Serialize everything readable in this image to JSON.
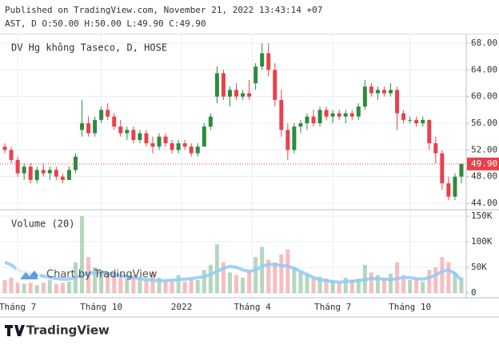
{
  "chart_data": {
    "type": "candlestick",
    "title": "Published on TradingView.com, November 21, 2022 13:43:14 +07",
    "subtitle": "AST, D O:50.00 H:50.00 L:49.90 C:49.90",
    "legend": "DV Hg không Taseco, D, HOSE",
    "watermark": "Chart by TradingView",
    "brand": "TradingView",
    "grid": true,
    "up_color": "#2e8b3e",
    "down_color": "#e8414b",
    "xlim": [
      -0.75,
      71.75
    ],
    "xticks": [
      {
        "value": 2,
        "label": "Tháng 7"
      },
      {
        "value": 15,
        "label": "Tháng 10"
      },
      {
        "value": 27.5,
        "label": "2022"
      },
      {
        "value": 38.5,
        "label": "Tháng 4"
      },
      {
        "value": 51,
        "label": "Tháng 7"
      },
      {
        "value": 63,
        "label": "Tháng 10"
      }
    ],
    "ylim": [
      43.04,
      69.44
    ],
    "yticks": [
      {
        "value": 44,
        "label": "44.00"
      },
      {
        "value": 48,
        "label": "48.00"
      },
      {
        "value": 52,
        "label": "52.00"
      },
      {
        "value": 56,
        "label": "56.00"
      },
      {
        "value": 60,
        "label": "60.00"
      },
      {
        "value": 64,
        "label": "64.00"
      },
      {
        "value": 68,
        "label": "68.00"
      }
    ],
    "last_price": {
      "value": 49.9,
      "label": "49.90"
    },
    "open": [
      52.5,
      52,
      50.5,
      48.5,
      49.5,
      47.5,
      49,
      48.5,
      49,
      48,
      47.5,
      49,
      55,
      56,
      54.5,
      56.5,
      58,
      57,
      55.5,
      54.5,
      55,
      53.5,
      54.5,
      53,
      52.5,
      54,
      53,
      52,
      53,
      52.5,
      51.5,
      52.5,
      55.5,
      60,
      63.5,
      60,
      61,
      60,
      60.5,
      62,
      64.5,
      66.5,
      64,
      59.5,
      55,
      52,
      55.5,
      56,
      57,
      56,
      58,
      57,
      57.5,
      57,
      57.5,
      57,
      58.5,
      61.5,
      60.5,
      61,
      60.5,
      61,
      57.5,
      56.5,
      56.5,
      56,
      56.5,
      53,
      51.5,
      47,
      45,
      48
    ],
    "high": [
      53,
      52.5,
      51,
      50,
      50,
      49.5,
      50,
      49.5,
      49.5,
      48.5,
      49.5,
      51.5,
      59.5,
      57,
      57,
      58.5,
      59,
      57.5,
      56.5,
      55.5,
      55.5,
      55,
      55,
      54,
      54.5,
      54.5,
      53.5,
      53.5,
      53.5,
      53,
      53,
      56,
      57.5,
      64.5,
      64,
      61.5,
      62,
      61,
      62.5,
      65,
      68,
      68,
      65,
      61,
      56,
      56,
      56.5,
      57.5,
      58,
      58.5,
      58.5,
      58,
      58,
      58,
      58,
      59,
      62.5,
      62,
      61.5,
      61.5,
      62,
      61.5,
      58,
      57,
      57,
      57,
      56.5,
      54,
      52,
      48,
      48.5,
      50
    ],
    "low": [
      51.5,
      50,
      48,
      47.5,
      47,
      47,
      48,
      47.5,
      47.5,
      47,
      47.5,
      48.5,
      54,
      54,
      54,
      56,
      56.5,
      55,
      54,
      53.5,
      53,
      53,
      52.5,
      51.5,
      52,
      52.5,
      51.5,
      51.5,
      52,
      51,
      51,
      52.5,
      55,
      59,
      59.5,
      58.5,
      59.5,
      59.5,
      59.5,
      61,
      64,
      63,
      58.5,
      54,
      50.5,
      51.5,
      54.5,
      55,
      55.5,
      55.5,
      56.5,
      56,
      56.5,
      56,
      56.5,
      56.5,
      58,
      60,
      59.5,
      60,
      60,
      55,
      56,
      56,
      55.5,
      55.5,
      52,
      50,
      46,
      44.5,
      44.5,
      47
    ],
    "close": [
      52,
      50.5,
      48.5,
      49.5,
      47.5,
      49,
      48.5,
      49,
      48,
      47.5,
      49,
      51,
      56,
      54.5,
      56.5,
      58,
      57,
      55.5,
      54.5,
      55,
      53.5,
      54.5,
      53,
      52.5,
      54,
      53,
      52,
      53,
      52.5,
      51.5,
      52.5,
      55.5,
      57,
      63.5,
      60,
      61,
      60,
      60.5,
      60,
      64.5,
      66.5,
      64,
      59.5,
      55,
      52,
      55.5,
      56,
      57,
      56,
      58,
      57,
      57.5,
      57,
      57.5,
      57,
      58.5,
      61.5,
      60.5,
      61,
      60.5,
      61,
      57.5,
      56.5,
      56.5,
      56,
      56.5,
      53,
      51.5,
      47,
      45,
      48,
      49.9
    ],
    "volume": {
      "title": "Volume (20)",
      "ylim": [
        -9375,
        162500
      ],
      "yticks": [
        {
          "value": 0,
          "label": "0"
        },
        {
          "value": 50000,
          "label": "50K"
        },
        {
          "value": 100000,
          "label": "100K"
        },
        {
          "value": 150000,
          "label": "150K"
        }
      ],
      "ma_color": "#90caf9",
      "values": [
        25000,
        30000,
        20000,
        18000,
        22000,
        15000,
        20000,
        25000,
        18000,
        20000,
        22000,
        60000,
        150000,
        70000,
        50000,
        45000,
        35000,
        40000,
        30000,
        28000,
        35000,
        30000,
        25000,
        40000,
        30000,
        25000,
        28000,
        35000,
        22000,
        30000,
        25000,
        45000,
        55000,
        95000,
        60000,
        40000,
        35000,
        30000,
        45000,
        70000,
        90000,
        65000,
        60000,
        75000,
        85000,
        50000,
        40000,
        35000,
        30000,
        32000,
        28000,
        25000,
        22000,
        30000,
        25000,
        28000,
        55000,
        40000,
        35000,
        30000,
        38000,
        60000,
        35000,
        25000,
        28000,
        22000,
        45000,
        50000,
        70000,
        60000,
        40000,
        30000
      ],
      "ma_values": [
        60000,
        55000,
        45000,
        40000,
        38000,
        35000,
        33000,
        30000,
        28000,
        27000,
        27000,
        30000,
        35000,
        38000,
        40000,
        40000,
        38000,
        36000,
        34000,
        32000,
        30000,
        28000,
        26000,
        25000,
        24000,
        24000,
        25000,
        26000,
        27000,
        28000,
        30000,
        32000,
        36000,
        42000,
        48000,
        52000,
        50000,
        45000,
        42000,
        45000,
        52000,
        56000,
        55000,
        54000,
        52000,
        48000,
        42000,
        36000,
        30000,
        26000,
        24000,
        22000,
        21000,
        22000,
        23000,
        24000,
        26000,
        28000,
        28000,
        27000,
        26000,
        28000,
        30000,
        30000,
        28000,
        27000,
        30000,
        35000,
        42000,
        45000,
        38000,
        25000
      ]
    }
  }
}
